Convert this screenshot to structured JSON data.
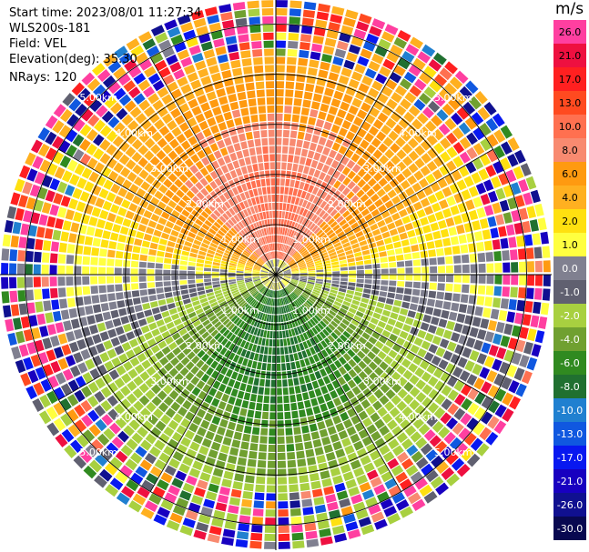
{
  "info": {
    "start_time": "Start time: 2023/08/01 11:27:34",
    "instrument": "WLS200s-181",
    "field": "Field: VEL",
    "elevation": "Elevation(deg): 35.30",
    "nrays": "NRays: 120"
  },
  "chart_data": {
    "type": "polar-ppi",
    "field": "VEL",
    "nrays": 120,
    "elevation_deg": 35.3,
    "range_rings": [
      "1.00km",
      "2.00km",
      "3.00km",
      "4.00km",
      "5.00km"
    ],
    "max_range_km": 5.5,
    "colorbar": {
      "unit": "m/s",
      "ticks": [
        "26.0",
        "21.0",
        "17.0",
        "13.0",
        "10.0",
        "8.0",
        "6.0",
        "4.0",
        "2.0",
        "1.0",
        "0.0",
        "-1.0",
        "-2.0",
        "-4.0",
        "-6.0",
        "-8.0",
        "-10.0",
        "-13.0",
        "-17.0",
        "-21.0",
        "-26.0",
        "-30.0"
      ],
      "colors": [
        "#ff3fa0",
        "#ee1040",
        "#ff2020",
        "#ff4a20",
        "#ff7050",
        "#f88a70",
        "#ff9a10",
        "#ffb020",
        "#ffe010",
        "#ffff40",
        "#808090",
        "#606070",
        "#a8d040",
        "#70a030",
        "#308a20",
        "#207030",
        "#2080d0",
        "#1058e0",
        "#0818f0",
        "#1800c0",
        "#101090",
        "#080850"
      ]
    },
    "velocity_pattern": {
      "description_values": {
        "north_sector_inner_ms": 8.0,
        "north_sector_outer_ms": 2.0,
        "south_sector_inner_ms": -6.0,
        "south_sector_outer_ms": -2.0,
        "noise_beyond_km": 4.3
      }
    }
  }
}
